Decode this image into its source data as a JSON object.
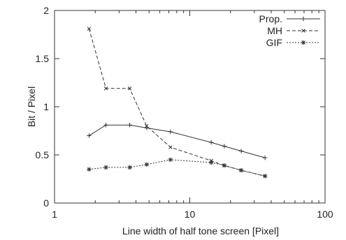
{
  "chart_data": {
    "type": "line",
    "xscale": "log",
    "xlim": [
      1,
      100
    ],
    "ylim": [
      0,
      2
    ],
    "title": "",
    "xlabel": "Line width of half tone screen [Pixel]",
    "ylabel": "Bit / Pixel",
    "x_ticks": [
      {
        "value": 1,
        "label": "1"
      },
      {
        "value": 10,
        "label": "10"
      },
      {
        "value": 100,
        "label": "100"
      }
    ],
    "y_ticks": [
      {
        "value": 0,
        "label": "0"
      },
      {
        "value": 0.5,
        "label": "0.5"
      },
      {
        "value": 1,
        "label": "1"
      },
      {
        "value": 1.5,
        "label": "1.5"
      },
      {
        "value": 2,
        "label": "2"
      }
    ],
    "legend_position": "top-right",
    "grid": false,
    "series": [
      {
        "name": "Prop.",
        "marker": "plus",
        "dash": "solid",
        "color": "#333333",
        "x": [
          1.8,
          2.4,
          3.6,
          4.8,
          7.2,
          14.4,
          18,
          24,
          36
        ],
        "values": [
          0.7,
          0.81,
          0.81,
          0.78,
          0.74,
          0.63,
          0.59,
          0.54,
          0.47
        ]
      },
      {
        "name": "MH",
        "marker": "cross",
        "dash": "dashed",
        "color": "#333333",
        "x": [
          1.8,
          2.4,
          3.6,
          4.8,
          7.2,
          14.4,
          18,
          24,
          36
        ],
        "values": [
          1.81,
          1.19,
          1.19,
          0.8,
          0.58,
          0.44,
          0.39,
          0.34,
          0.28
        ]
      },
      {
        "name": "GIF",
        "marker": "star",
        "dash": "dotted",
        "color": "#333333",
        "x": [
          1.8,
          2.4,
          3.6,
          4.8,
          7.2,
          14.4,
          18,
          24,
          36
        ],
        "values": [
          0.35,
          0.37,
          0.37,
          0.4,
          0.45,
          0.42,
          0.39,
          0.34,
          0.28
        ]
      }
    ]
  }
}
